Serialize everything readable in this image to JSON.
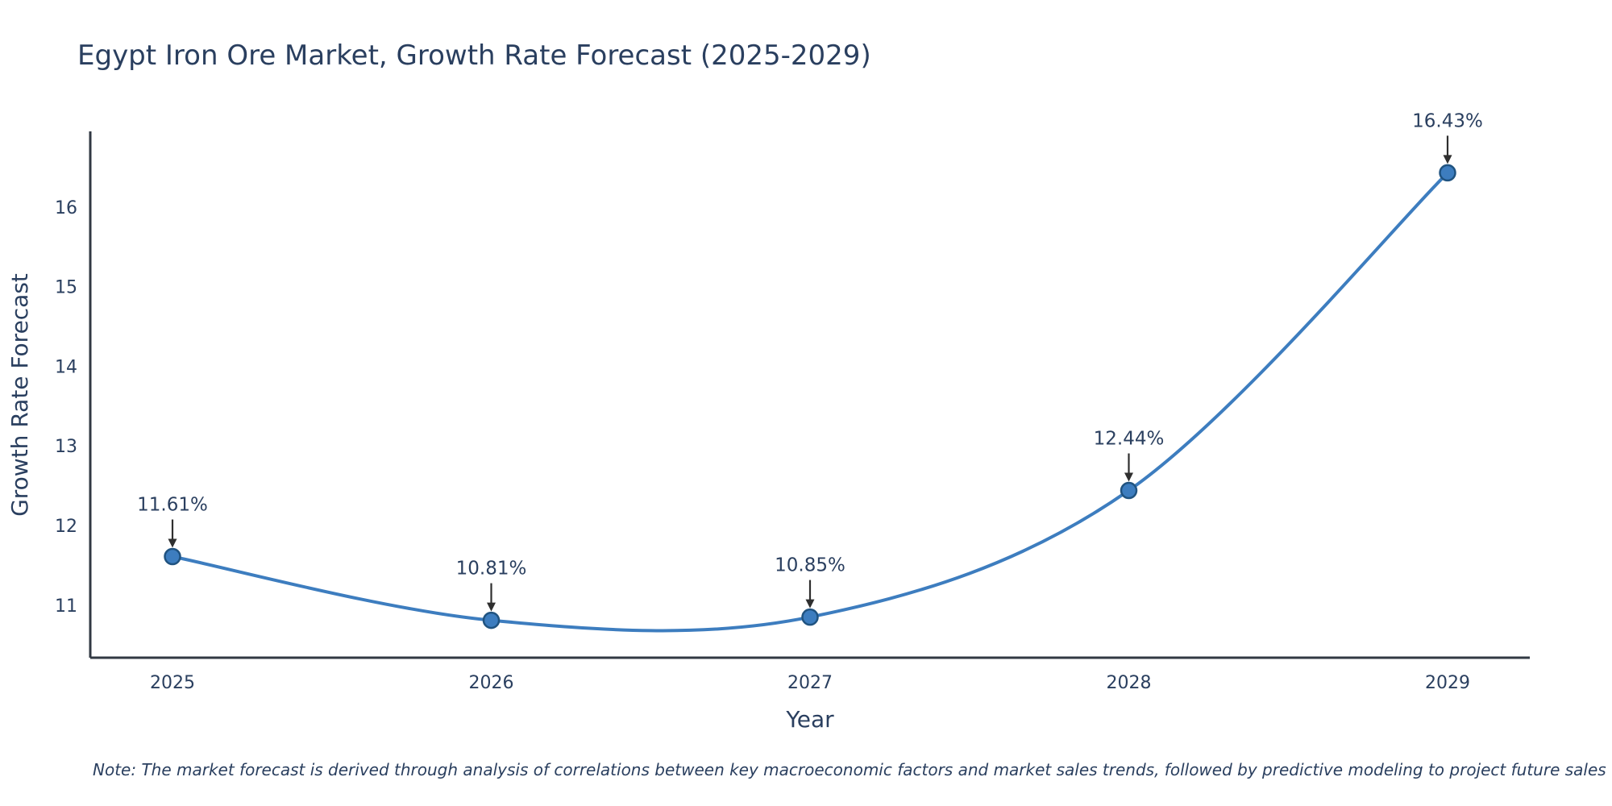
{
  "page": {
    "background": "#ffffff"
  },
  "chart_data": {
    "type": "line",
    "title": "Egypt Iron Ore Market, Growth Rate Forecast (2025-2029)",
    "xlabel": "Year",
    "ylabel": "Growth Rate Forecast",
    "x": [
      2025,
      2026,
      2027,
      2028,
      2029
    ],
    "values": [
      11.61,
      10.81,
      10.85,
      12.44,
      16.43
    ],
    "point_labels": [
      "11.61%",
      "10.81%",
      "10.85%",
      "12.44%",
      "16.43%"
    ],
    "y_ticks": [
      11,
      12,
      13,
      14,
      15,
      16
    ],
    "ylim": [
      10.34,
      16.95
    ],
    "line_shape": "spline",
    "grid": false,
    "legend": "none",
    "colors": {
      "line": "#3d7dbf",
      "marker_fill": "#3d7dbf",
      "marker_edge": "#205380",
      "text": "#2a3f5f",
      "axis": "#323943",
      "arrow": "#2f2f2f"
    },
    "note": "Note: The market forecast is derived through analysis of correlations between key macroeconomic factors and market sales trends, followed by predictive modeling to project future sales"
  }
}
